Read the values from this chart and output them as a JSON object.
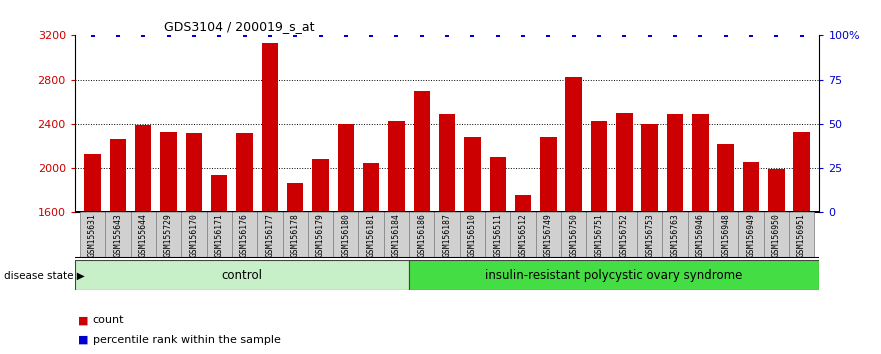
{
  "title": "GDS3104 / 200019_s_at",
  "samples": [
    "GSM155631",
    "GSM155643",
    "GSM155644",
    "GSM155729",
    "GSM156170",
    "GSM156171",
    "GSM156176",
    "GSM156177",
    "GSM156178",
    "GSM156179",
    "GSM156180",
    "GSM156181",
    "GSM156184",
    "GSM156186",
    "GSM156187",
    "GSM156510",
    "GSM156511",
    "GSM156512",
    "GSM156749",
    "GSM156750",
    "GSM156751",
    "GSM156752",
    "GSM156753",
    "GSM156763",
    "GSM156946",
    "GSM156948",
    "GSM156949",
    "GSM156950",
    "GSM156951"
  ],
  "counts": [
    2130,
    2260,
    2390,
    2330,
    2320,
    1940,
    2320,
    3130,
    1870,
    2080,
    2400,
    2050,
    2430,
    2700,
    2490,
    2280,
    2100,
    1760,
    2280,
    2820,
    2430,
    2500,
    2400,
    2490,
    2490,
    2220,
    2060,
    1990,
    2330
  ],
  "percentile_ranks": [
    100,
    100,
    100,
    100,
    100,
    100,
    100,
    100,
    100,
    100,
    100,
    100,
    100,
    100,
    100,
    100,
    100,
    100,
    100,
    100,
    100,
    100,
    100,
    100,
    100,
    100,
    100,
    100,
    100
  ],
  "control_count": 13,
  "control_label": "control",
  "disease_label": "insulin-resistant polycystic ovary syndrome",
  "disease_state_label": "disease state",
  "bar_color": "#CC0000",
  "percentile_color": "#0000CC",
  "ylim_left": [
    1600,
    3200
  ],
  "ylim_right": [
    0,
    100
  ],
  "yticks_left": [
    1600,
    2000,
    2400,
    2800,
    3200
  ],
  "yticks_right": [
    0,
    25,
    50,
    75,
    100
  ],
  "ytick_right_labels": [
    "0",
    "25",
    "50",
    "75",
    "100%"
  ],
  "control_bg": "#C8F0C8",
  "disease_bg": "#44DD44",
  "legend_count_label": "count",
  "legend_percentile_label": "percentile rank within the sample",
  "label_box_color": "#D0D0D0"
}
